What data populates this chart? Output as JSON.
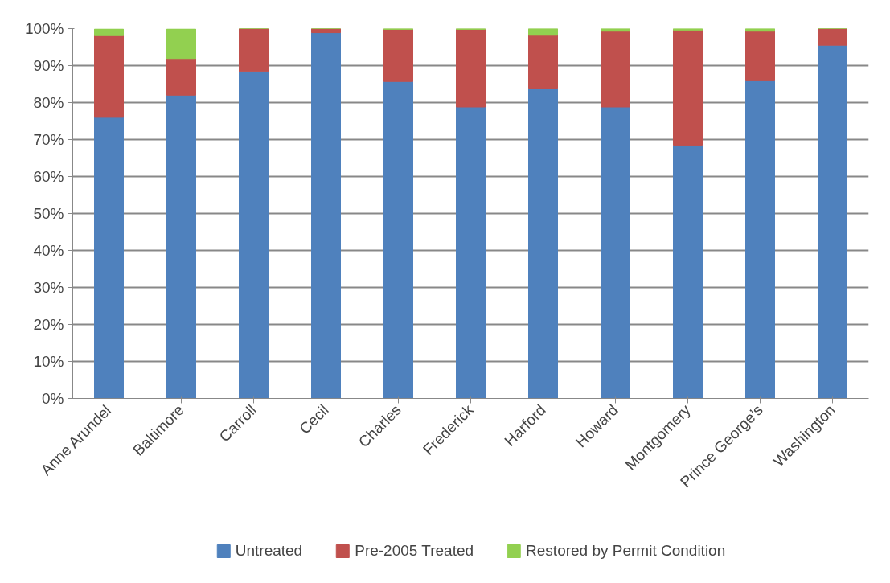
{
  "chart_data": {
    "type": "bar",
    "stacked": true,
    "categories": [
      "Anne Arundel",
      "Baltimore",
      "Carroll",
      "Cecil",
      "Charles",
      "Frederick",
      "Harford",
      "Howard",
      "Montgomery",
      "Prince George’s",
      "Washington"
    ],
    "series": [
      {
        "name": "Untreated",
        "color": "#4f81bd",
        "values": [
          76,
          82,
          88.4,
          98.9,
          85.7,
          78.8,
          83.7,
          78.8,
          68.5,
          85.9,
          95.5
        ]
      },
      {
        "name": "Pre-2005 Treated",
        "color": "#c0504d",
        "values": [
          22.1,
          9.9,
          11.6,
          1.1,
          14.1,
          21.0,
          14.5,
          20.5,
          31.1,
          13.4,
          4.5
        ]
      },
      {
        "name": "Restored by Permit Condition",
        "color": "#92d050",
        "values": [
          1.8,
          8.0,
          0,
          0,
          0.2,
          0.2,
          1.8,
          0.7,
          0.4,
          0.7,
          0
        ]
      }
    ],
    "ylim": [
      0,
      100
    ],
    "yticks": [
      {
        "value": 0,
        "label": "0%"
      },
      {
        "value": 10,
        "label": "10%"
      },
      {
        "value": 20,
        "label": "20%"
      },
      {
        "value": 30,
        "label": "30%"
      },
      {
        "value": 40,
        "label": "40%"
      },
      {
        "value": 50,
        "label": "50%"
      },
      {
        "value": 60,
        "label": "60%"
      },
      {
        "value": 70,
        "label": "70%"
      },
      {
        "value": 80,
        "label": "80%"
      },
      {
        "value": 90,
        "label": "90%"
      },
      {
        "value": 100,
        "label": "100%"
      }
    ],
    "grid": "y",
    "legend": "bottom"
  }
}
